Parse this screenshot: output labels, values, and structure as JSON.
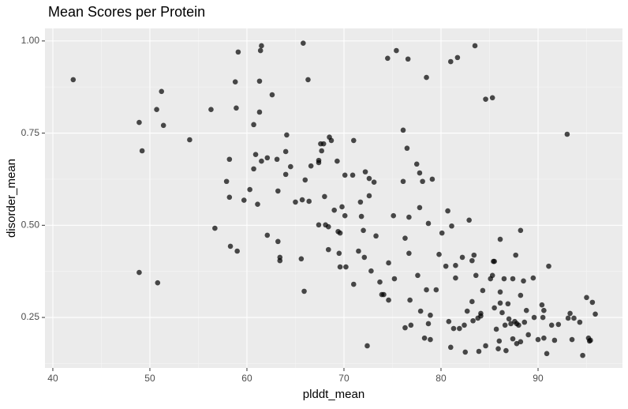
{
  "chart_data": {
    "type": "scatter",
    "title": "Mean Scores per Protein",
    "x_label": "plddt_mean",
    "y_label": "disorder_mean",
    "color": "#000000",
    "alpha": 0.7,
    "grid": true,
    "xlim": [
      39.19,
      98.7
    ],
    "ylim": [
      0.113,
      1.034
    ],
    "xticks": [
      40,
      50,
      60,
      70,
      80,
      90
    ],
    "yticks": [
      {
        "value": 0.25,
        "label": "0.25"
      },
      {
        "value": 0.5,
        "label": "0.50"
      },
      {
        "value": 0.75,
        "label": "0.75"
      },
      {
        "value": 1.0,
        "label": "1.00"
      }
    ],
    "x": [
      42.1,
      48.9,
      49.2,
      48.9,
      50.7,
      51.2,
      51.4,
      50.8,
      54.1,
      56.3,
      56.7,
      58.8,
      59.1,
      58.9,
      61.5,
      61.4,
      61.3,
      61.3,
      62.6,
      60.7,
      65.8,
      66.3,
      57.9,
      58.2,
      58.2,
      58.3,
      59.0,
      59.7,
      60.3,
      60.9,
      60.7,
      61.1,
      61.5,
      62.1,
      62.1,
      63.1,
      63.2,
      63.2,
      63.4,
      63.4,
      64.0,
      64.1,
      64.0,
      64.5,
      65.0,
      65.6,
      65.9,
      65.7,
      66.0,
      66.4,
      66.6,
      67.4,
      67.4,
      67.7,
      67.6,
      67.9,
      68.5,
      68.7,
      68.0,
      67.4,
      68.1,
      68.4,
      68.4,
      69.0,
      69.3,
      69.4,
      69.5,
      69.6,
      70.1,
      70.1,
      70.2,
      69.8,
      69.6,
      71.0,
      70.9,
      71.0,
      71.5,
      71.7,
      71.8,
      72.0,
      72.2,
      72.6,
      72.6,
      72.8,
      73.1,
      73.3,
      72.1,
      72.4,
      73.7,
      73.9,
      74.1,
      74.5,
      74.6,
      74.6,
      75.1,
      75.2,
      75.4,
      76.1,
      76.1,
      76.3,
      76.3,
      76.6,
      76.5,
      76.7,
      76.7,
      76.8,
      76.9,
      77.5,
      77.6,
      77.8,
      77.8,
      78.1,
      77.9,
      78.3,
      78.5,
      78.5,
      78.7,
      78.7,
      78.9,
      79.1,
      78.9,
      79.5,
      79.8,
      80.1,
      80.5,
      80.7,
      80.8,
      81.0,
      81.0,
      81.1,
      81.3,
      81.5,
      81.7,
      81.5,
      81.9,
      82.2,
      82.4,
      82.5,
      82.7,
      82.9,
      83.2,
      83.2,
      83.3,
      83.5,
      83.4,
      83.6,
      83.8,
      84.1,
      83.9,
      84.1,
      84.3,
      84.6,
      84.6,
      85.1,
      85.3,
      85.3,
      85.4,
      85.5,
      85.5,
      85.7,
      85.9,
      86.0,
      86.1,
      86.1,
      86.1,
      86.3,
      86.5,
      86.6,
      86.7,
      86.9,
      87.0,
      87.2,
      87.4,
      87.4,
      87.6,
      87.7,
      87.8,
      87.8,
      88.0,
      88.2,
      88.2,
      88.2,
      88.5,
      88.6,
      88.8,
      89.0,
      89.5,
      89.6,
      90.0,
      90.4,
      90.5,
      90.6,
      90.6,
      90.9,
      91.1,
      91.4,
      91.7,
      92.1,
      93.0,
      93.1,
      93.3,
      93.5,
      93.7,
      94.3,
      94.6,
      95.0,
      95.2,
      95.3,
      95.4,
      95.6,
      95.9
    ],
    "values": [
      0.895,
      0.779,
      0.702,
      0.372,
      0.814,
      0.863,
      0.771,
      0.344,
      0.732,
      0.814,
      0.492,
      0.889,
      0.97,
      0.818,
      0.987,
      0.974,
      0.891,
      0.807,
      0.854,
      0.773,
      0.994,
      0.895,
      0.619,
      0.679,
      0.576,
      0.443,
      0.43,
      0.568,
      0.597,
      0.692,
      0.653,
      0.557,
      0.674,
      0.683,
      0.473,
      0.679,
      0.593,
      0.456,
      0.413,
      0.404,
      0.7,
      0.745,
      0.638,
      0.659,
      0.563,
      0.409,
      0.321,
      0.569,
      0.623,
      0.565,
      0.661,
      0.67,
      0.676,
      0.702,
      0.721,
      0.721,
      0.739,
      0.73,
      0.578,
      0.501,
      0.501,
      0.496,
      0.434,
      0.541,
      0.674,
      0.483,
      0.424,
      0.387,
      0.636,
      0.526,
      0.387,
      0.55,
      0.479,
      0.73,
      0.636,
      0.34,
      0.43,
      0.563,
      0.524,
      0.486,
      0.645,
      0.627,
      0.58,
      0.376,
      0.617,
      0.471,
      0.413,
      0.173,
      0.346,
      0.312,
      0.312,
      0.953,
      0.398,
      0.297,
      0.526,
      0.355,
      0.974,
      0.758,
      0.619,
      0.465,
      0.222,
      0.951,
      0.709,
      0.522,
      0.424,
      0.297,
      0.229,
      0.666,
      0.364,
      0.642,
      0.548,
      0.619,
      0.267,
      0.194,
      0.901,
      0.325,
      0.505,
      0.233,
      0.19,
      0.625,
      0.256,
      0.325,
      0.421,
      0.479,
      0.389,
      0.539,
      0.239,
      0.944,
      0.169,
      0.498,
      0.22,
      0.391,
      0.955,
      0.357,
      0.22,
      0.413,
      0.229,
      0.156,
      0.267,
      0.514,
      0.404,
      0.293,
      0.241,
      0.987,
      0.419,
      0.364,
      0.248,
      0.261,
      0.158,
      0.254,
      0.323,
      0.842,
      0.173,
      0.355,
      0.846,
      0.364,
      0.402,
      0.402,
      0.276,
      0.218,
      0.165,
      0.186,
      0.462,
      0.319,
      0.289,
      0.263,
      0.355,
      0.229,
      0.16,
      0.287,
      0.246,
      0.233,
      0.355,
      0.192,
      0.239,
      0.419,
      0.179,
      0.233,
      0.229,
      0.486,
      0.31,
      0.184,
      0.349,
      0.237,
      0.269,
      0.203,
      0.357,
      0.25,
      0.19,
      0.284,
      0.25,
      0.269,
      0.194,
      0.152,
      0.389,
      0.229,
      0.188,
      0.231,
      0.747,
      0.248,
      0.261,
      0.19,
      0.248,
      0.237,
      0.147,
      0.304,
      0.194,
      0.186,
      0.188,
      0.291,
      0.259
    ]
  }
}
